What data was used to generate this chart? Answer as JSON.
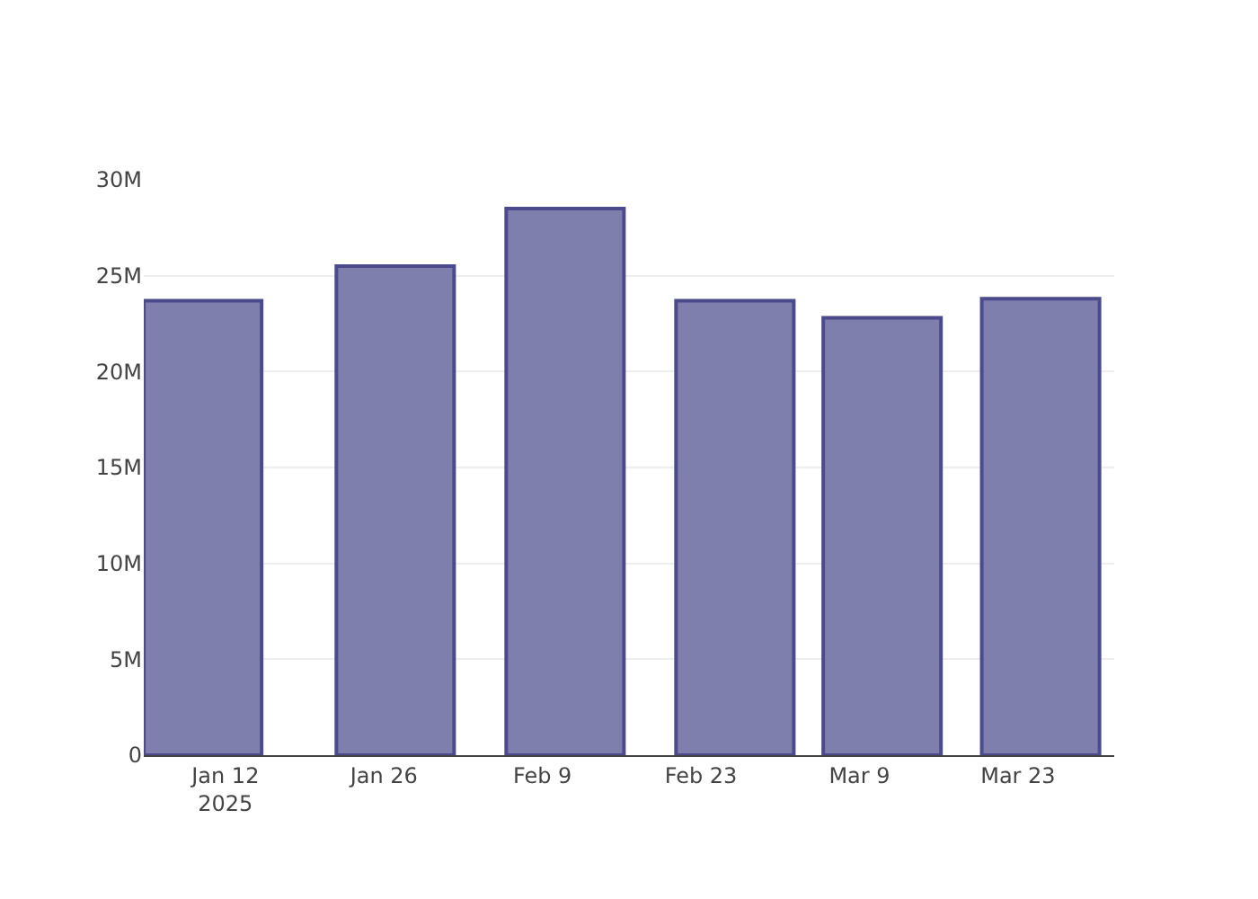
{
  "chart_data": {
    "type": "bar",
    "x": [
      "2025-01-10",
      "2025-01-27",
      "2025-02-11",
      "2025-02-26",
      "2025-03-11",
      "2025-03-25"
    ],
    "values": [
      23.7,
      25.5,
      28.5,
      23.7,
      22.8,
      23.8
    ],
    "color": "#7f7fae",
    "xlim": [
      "2025-01-04T19:00",
      "2025-03-31T12:00"
    ],
    "xticks": [
      {
        "value": "2025-01-12",
        "label": "Jan 12\n2025"
      },
      {
        "value": "2025-01-26",
        "label": "Jan 26"
      },
      {
        "value": "2025-02-09",
        "label": "Feb 9"
      },
      {
        "value": "2025-02-23",
        "label": "Feb 23"
      },
      {
        "value": "2025-03-09",
        "label": "Mar 9"
      },
      {
        "value": "2025-03-23",
        "label": "Mar 23"
      }
    ],
    "ylim": [
      0,
      30
    ],
    "yticks": [
      {
        "value": 0,
        "label": "0"
      },
      {
        "value": 5,
        "label": "5M"
      },
      {
        "value": 10,
        "label": "10M"
      },
      {
        "value": 15,
        "label": "15M"
      },
      {
        "value": 20,
        "label": "20M"
      },
      {
        "value": 25,
        "label": "25M"
      },
      {
        "value": 30,
        "label": "30M"
      }
    ],
    "grid": "y"
  }
}
